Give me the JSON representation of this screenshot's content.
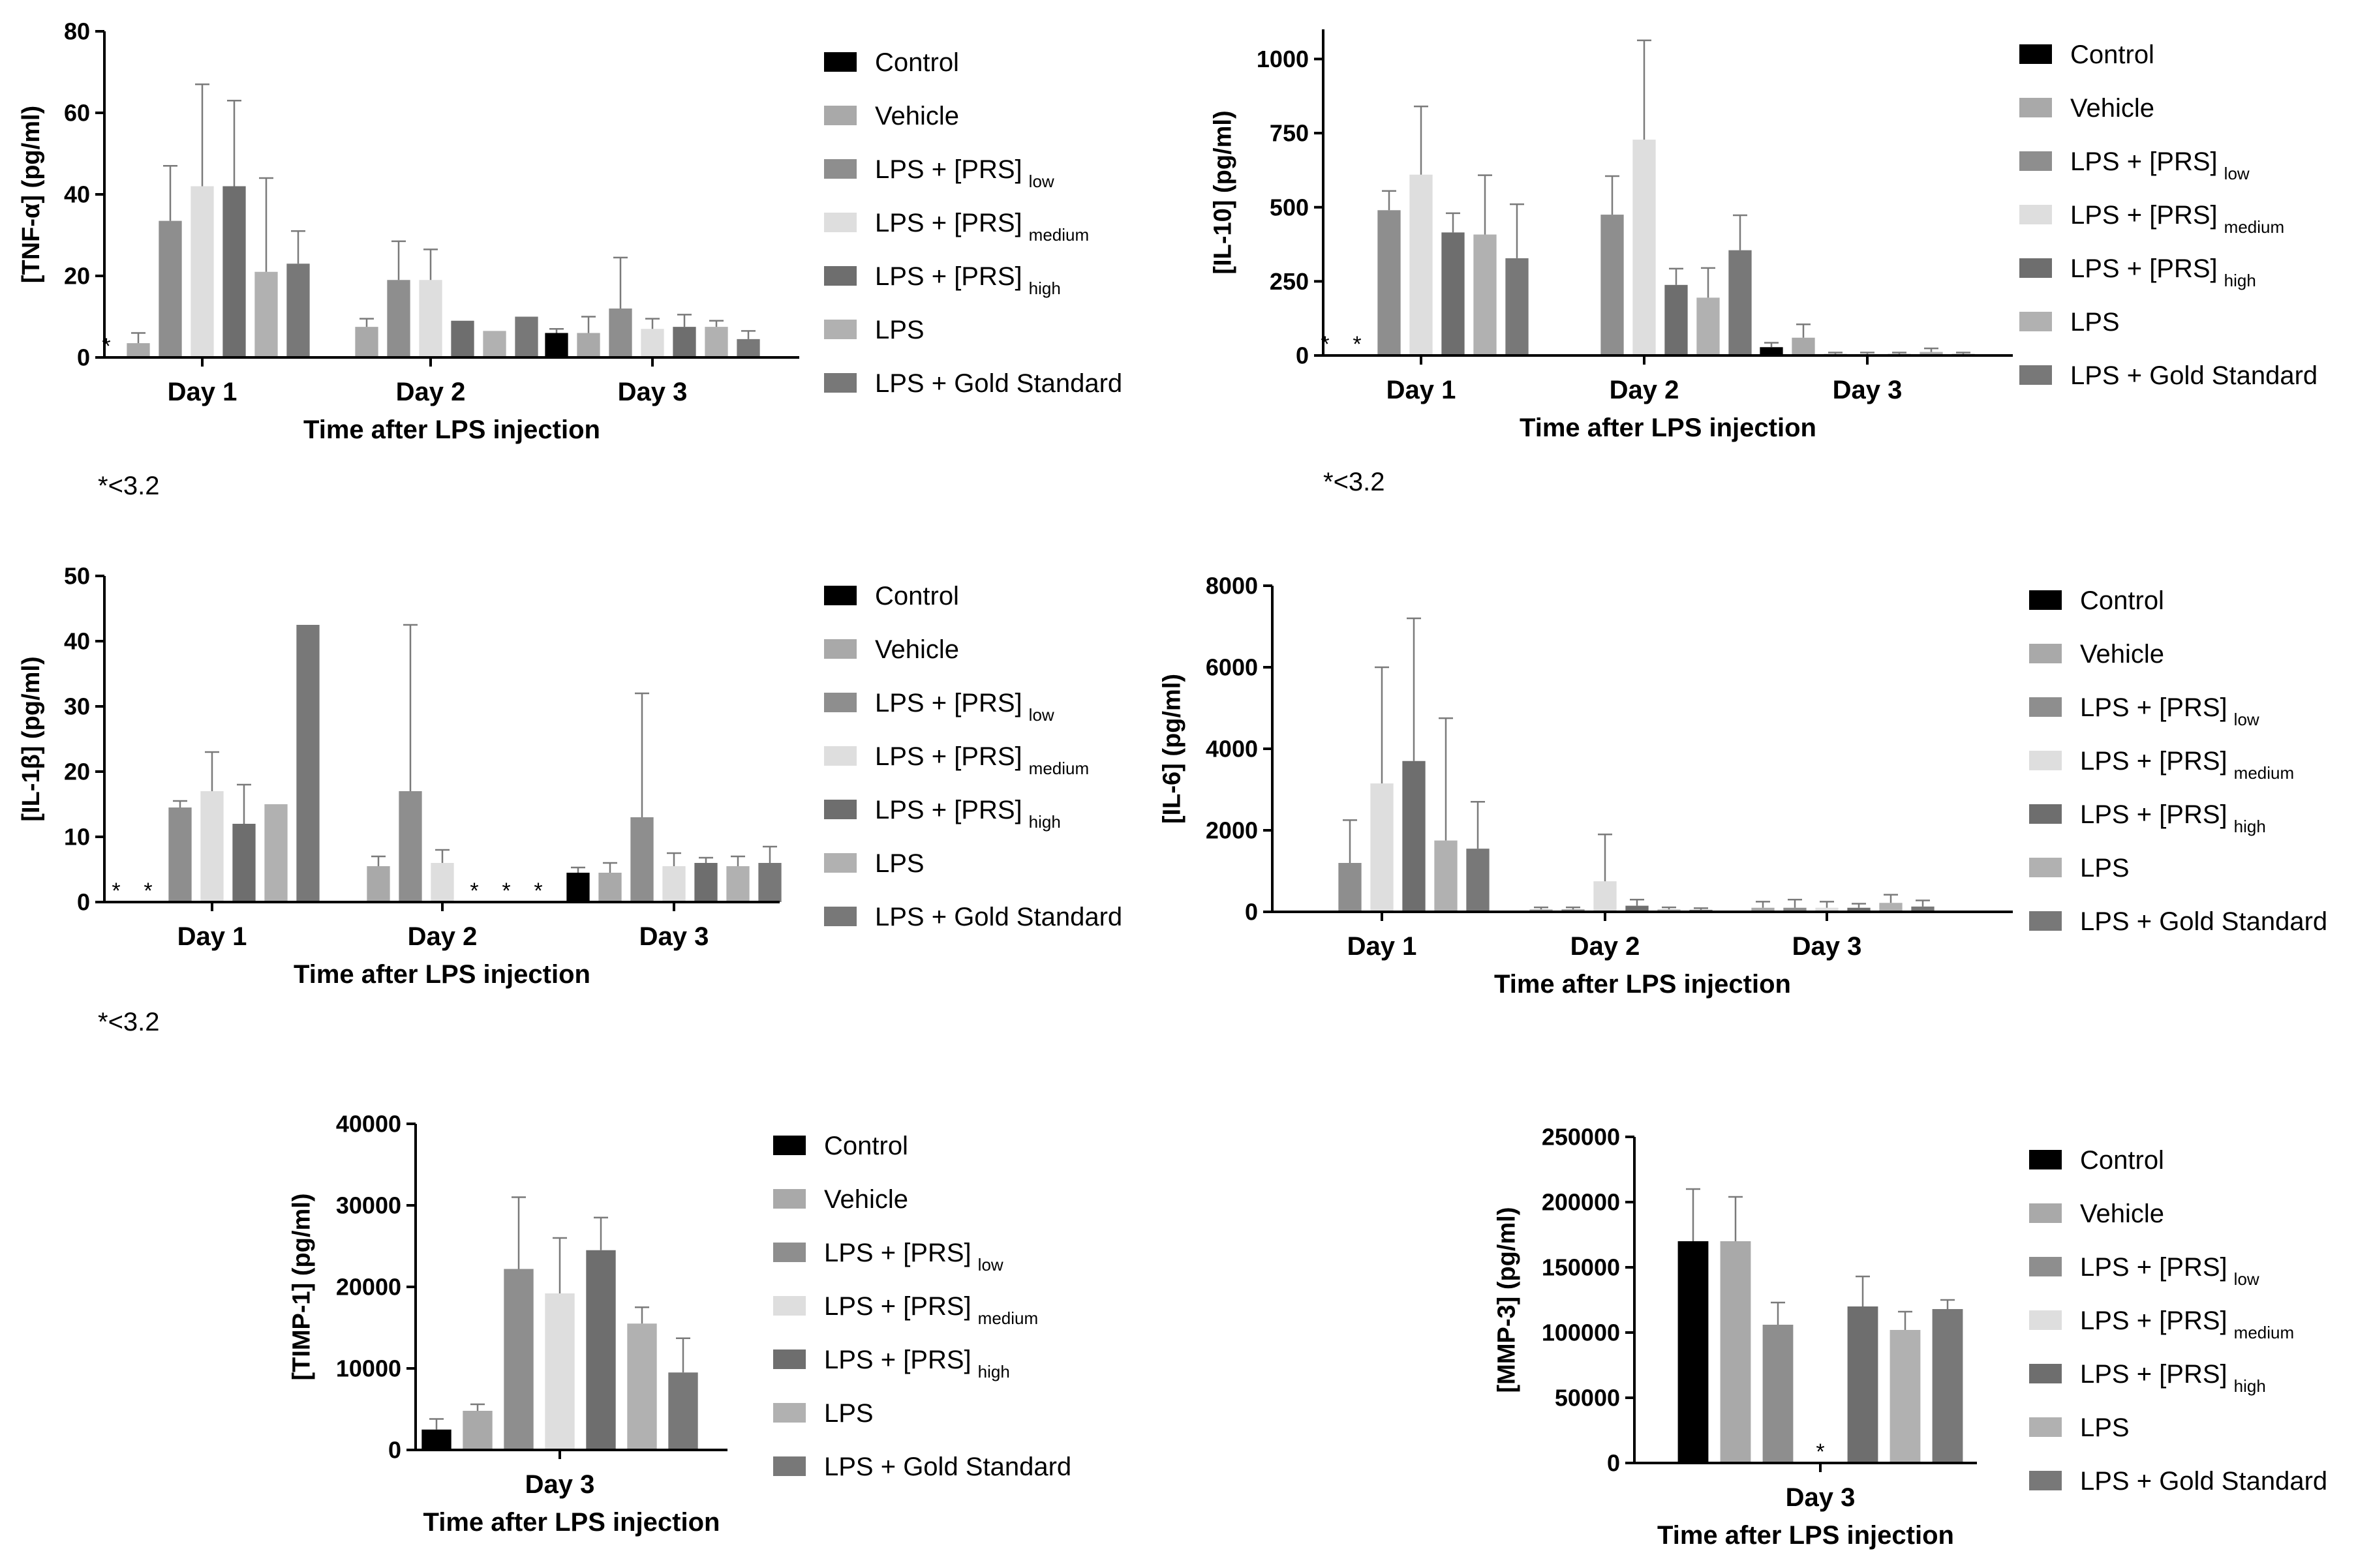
{
  "legend_labels": [
    {
      "main": "Control",
      "sub": ""
    },
    {
      "main": "Vehicle",
      "sub": ""
    },
    {
      "main": "LPS + [PRS]",
      "sub": "low"
    },
    {
      "main": "LPS + [PRS]",
      "sub": "medium"
    },
    {
      "main": "LPS + [PRS]",
      "sub": "high"
    },
    {
      "main": "LPS",
      "sub": ""
    },
    {
      "main": "LPS + Gold Standard",
      "sub": ""
    }
  ],
  "series_colors": [
    "#000000",
    "#a9a9a9",
    "#8e8e8e",
    "#dedede",
    "#6e6e6e",
    "#b1b1b1",
    "#787878"
  ],
  "notes": {
    "tnf": "*<3.2",
    "il10": "*<3.2",
    "il1b": "*<3.2"
  },
  "chart_data": [
    {
      "id": "tnf",
      "type": "bar",
      "ylabel": "[TNF-α] (pg/ml)",
      "xlabel": "Time after LPS injection",
      "categories": [
        "Day 1",
        "Day 2",
        "Day 3"
      ],
      "ylim": [
        0,
        80
      ],
      "yticks": [
        0,
        20,
        40,
        60,
        80
      ],
      "ytick_labels": [
        "0",
        "20",
        "40",
        "60",
        "80"
      ],
      "series": [
        {
          "name": "Control",
          "values": [
            null,
            null,
            6
          ],
          "errors": [
            null,
            null,
            1
          ]
        },
        {
          "name": "Vehicle",
          "values": [
            3.5,
            7.5,
            6
          ],
          "errors": [
            2.5,
            2,
            4
          ]
        },
        {
          "name": "LPS + [PRS] low",
          "values": [
            33.5,
            19,
            12
          ],
          "errors": [
            13.5,
            9.5,
            12.5
          ]
        },
        {
          "name": "LPS + [PRS] medium",
          "values": [
            42,
            19,
            7
          ],
          "errors": [
            25,
            7.5,
            2.5
          ]
        },
        {
          "name": "LPS + [PRS] high",
          "values": [
            42,
            9,
            7.5
          ],
          "errors": [
            21,
            0,
            3
          ]
        },
        {
          "name": "LPS",
          "values": [
            21,
            6.5,
            7.5
          ],
          "errors": [
            23,
            0,
            1.5
          ]
        },
        {
          "name": "LPS + Gold Standard",
          "values": [
            23,
            10,
            4.5
          ],
          "errors": [
            8,
            0,
            2
          ]
        }
      ],
      "below_detection": [
        {
          "category": 0,
          "series": 0
        }
      ]
    },
    {
      "id": "il10",
      "type": "bar",
      "ylabel": "[IL-10] (pg/ml)",
      "xlabel": "Time after LPS injection",
      "categories": [
        "Day 1",
        "Day 2",
        "Day 3"
      ],
      "ylim": [
        0,
        1100
      ],
      "yticks": [
        0,
        250,
        500,
        750,
        1000
      ],
      "ytick_labels": [
        "0",
        "250",
        "500",
        "750",
        "1000"
      ],
      "series": [
        {
          "name": "Control",
          "values": [
            null,
            2,
            28
          ],
          "errors": [
            null,
            0,
            15
          ]
        },
        {
          "name": "Vehicle",
          "values": [
            null,
            null,
            60
          ],
          "errors": [
            null,
            null,
            45
          ]
        },
        {
          "name": "LPS + [PRS] low",
          "values": [
            490,
            475,
            5
          ],
          "errors": [
            65,
            130,
            5
          ]
        },
        {
          "name": "LPS + [PRS] medium",
          "values": [
            610,
            728,
            5
          ],
          "errors": [
            230,
            335,
            5
          ]
        },
        {
          "name": "LPS + [PRS] high",
          "values": [
            415,
            238,
            5
          ],
          "errors": [
            65,
            55,
            5
          ]
        },
        {
          "name": "LPS",
          "values": [
            408,
            195,
            12
          ],
          "errors": [
            200,
            100,
            12
          ]
        },
        {
          "name": "LPS + Gold Standard",
          "values": [
            328,
            355,
            5
          ],
          "errors": [
            182,
            118,
            5
          ]
        }
      ],
      "below_detection": [
        {
          "category": 0,
          "series": 0
        },
        {
          "category": 0,
          "series": 1
        }
      ]
    },
    {
      "id": "il1b",
      "type": "bar",
      "ylabel": "[IL-1β] (pg/ml)",
      "xlabel": "Time after LPS injection",
      "categories": [
        "Day 1",
        "Day 2",
        "Day 3"
      ],
      "ylim": [
        0,
        50
      ],
      "yticks": [
        0,
        10,
        20,
        30,
        40,
        50
      ],
      "ytick_labels": [
        "0",
        "10",
        "20",
        "30",
        "40",
        "50"
      ],
      "series": [
        {
          "name": "Control",
          "values": [
            null,
            null,
            4.5
          ],
          "errors": [
            null,
            null,
            0.8
          ]
        },
        {
          "name": "Vehicle",
          "values": [
            null,
            5.5,
            4.5
          ],
          "errors": [
            null,
            1.5,
            1.5
          ]
        },
        {
          "name": "LPS + [PRS] low",
          "values": [
            14.5,
            17,
            13
          ],
          "errors": [
            1,
            25.5,
            19
          ]
        },
        {
          "name": "LPS + [PRS] medium",
          "values": [
            17,
            6,
            5.5
          ],
          "errors": [
            6,
            2,
            2
          ]
        },
        {
          "name": "LPS + [PRS] high",
          "values": [
            12,
            null,
            6
          ],
          "errors": [
            6,
            null,
            0.8
          ]
        },
        {
          "name": "LPS",
          "values": [
            15,
            null,
            5.5
          ],
          "errors": [
            0,
            null,
            1.5
          ]
        },
        {
          "name": "LPS + Gold Standard",
          "values": [
            42.5,
            null,
            6
          ],
          "errors": [
            0,
            null,
            2.5
          ]
        }
      ],
      "below_detection": [
        {
          "category": 0,
          "series": 0
        },
        {
          "category": 0,
          "series": 1
        },
        {
          "category": 1,
          "series": 4
        },
        {
          "category": 1,
          "series": 5
        },
        {
          "category": 1,
          "series": 6
        }
      ]
    },
    {
      "id": "il6",
      "type": "bar",
      "ylabel": "[IL-6] (pg/ml)",
      "xlabel": "Time after LPS injection",
      "categories": [
        "Day 1",
        "Day 2",
        "Day 3"
      ],
      "ylim": [
        0,
        8000
      ],
      "yticks": [
        0,
        2000,
        4000,
        6000,
        8000
      ],
      "ytick_labels": [
        "0",
        "2000",
        "4000",
        "6000",
        "8000"
      ],
      "series": [
        {
          "name": "Control",
          "values": [
            20,
            20,
            20
          ],
          "errors": [
            0,
            0,
            0
          ]
        },
        {
          "name": "Vehicle",
          "values": [
            20,
            60,
            100
          ],
          "errors": [
            0,
            50,
            150
          ]
        },
        {
          "name": "LPS + [PRS] low",
          "values": [
            1200,
            60,
            100
          ],
          "errors": [
            1050,
            50,
            200
          ]
        },
        {
          "name": "LPS + [PRS] medium",
          "values": [
            3150,
            750,
            100
          ],
          "errors": [
            2850,
            1150,
            150
          ]
        },
        {
          "name": "LPS + [PRS] high",
          "values": [
            3700,
            150,
            100
          ],
          "errors": [
            3500,
            150,
            100
          ]
        },
        {
          "name": "LPS",
          "values": [
            1750,
            60,
            220
          ],
          "errors": [
            3000,
            50,
            200
          ]
        },
        {
          "name": "LPS + Gold Standard",
          "values": [
            1550,
            50,
            130
          ],
          "errors": [
            1150,
            40,
            150
          ]
        }
      ],
      "below_detection": []
    },
    {
      "id": "timp1",
      "type": "bar",
      "ylabel": "[TIMP-1] (pg/ml)",
      "xlabel": "Time after LPS injection",
      "categories": [
        "Day 3"
      ],
      "ylim": [
        0,
        40000
      ],
      "yticks": [
        0,
        10000,
        20000,
        30000,
        40000
      ],
      "ytick_labels": [
        "0",
        "10000",
        "20000",
        "30000",
        "40000"
      ],
      "series": [
        {
          "name": "Control",
          "values": [
            2500
          ],
          "errors": [
            1300
          ]
        },
        {
          "name": "Vehicle",
          "values": [
            4800
          ],
          "errors": [
            800
          ]
        },
        {
          "name": "LPS + [PRS] low",
          "values": [
            22200
          ],
          "errors": [
            8800
          ]
        },
        {
          "name": "LPS + [PRS] medium",
          "values": [
            19200
          ],
          "errors": [
            6800
          ]
        },
        {
          "name": "LPS + [PRS] high",
          "values": [
            24500
          ],
          "errors": [
            4000
          ]
        },
        {
          "name": "LPS",
          "values": [
            15500
          ],
          "errors": [
            2000
          ]
        },
        {
          "name": "LPS + Gold Standard",
          "values": [
            9500
          ],
          "errors": [
            4200
          ]
        }
      ],
      "below_detection": []
    },
    {
      "id": "mmp3",
      "type": "bar",
      "ylabel": "[MMP-3] (pg/ml)",
      "xlabel": "Time after LPS injection",
      "categories": [
        "Day 3"
      ],
      "ylim": [
        0,
        250000
      ],
      "yticks": [
        0,
        50000,
        100000,
        150000,
        200000,
        250000
      ],
      "ytick_labels": [
        "0",
        "50000",
        "100000",
        "150000",
        "200000",
        "250000"
      ],
      "series": [
        {
          "name": "Control",
          "values": [
            170000
          ],
          "errors": [
            40000
          ]
        },
        {
          "name": "Vehicle",
          "values": [
            170000
          ],
          "errors": [
            34000
          ]
        },
        {
          "name": "LPS + [PRS] low",
          "values": [
            106000
          ],
          "errors": [
            17000
          ]
        },
        {
          "name": "LPS + [PRS] medium",
          "values": [
            null
          ],
          "errors": [
            null
          ]
        },
        {
          "name": "LPS + [PRS] high",
          "values": [
            120000
          ],
          "errors": [
            23000
          ]
        },
        {
          "name": "LPS",
          "values": [
            102000
          ],
          "errors": [
            14000
          ]
        },
        {
          "name": "LPS + Gold Standard",
          "values": [
            118000
          ],
          "errors": [
            7000
          ]
        }
      ],
      "below_detection": [
        {
          "category": 0,
          "series": 3
        }
      ]
    }
  ]
}
